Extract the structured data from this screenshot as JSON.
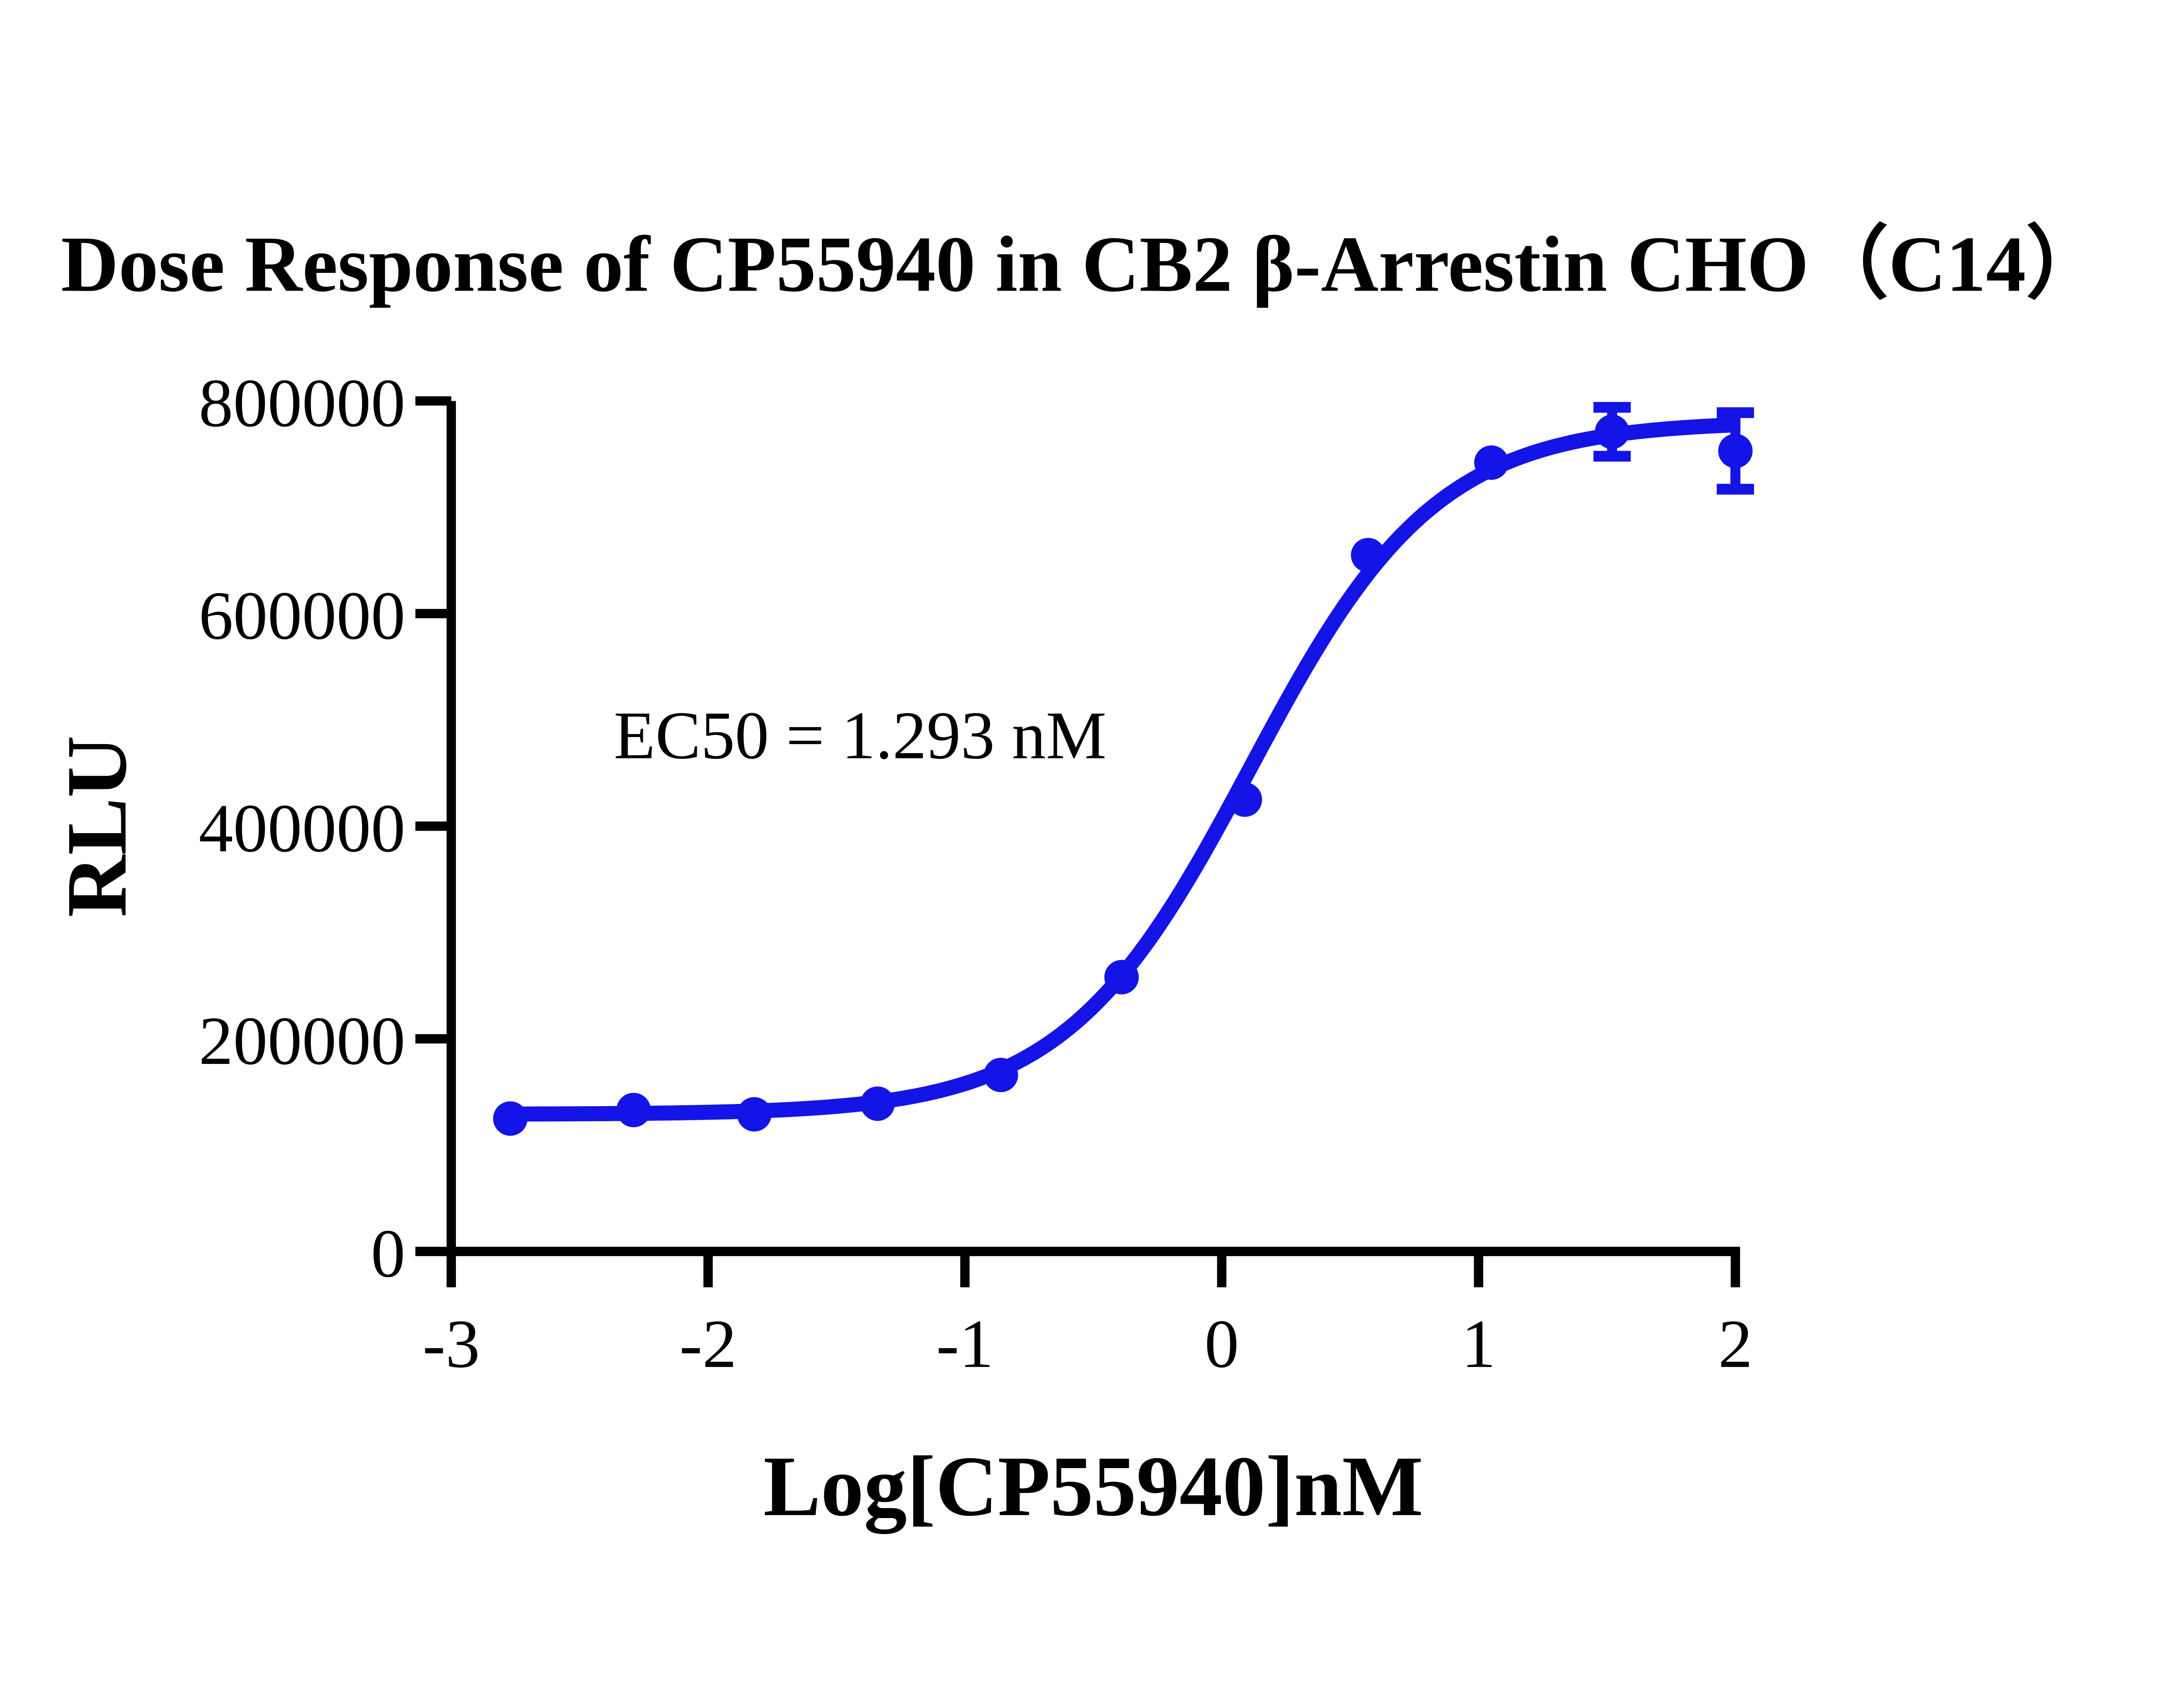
{
  "title": "Dose Response of CP55940 in CB2 β-Arrestin CHO（C14）",
  "annotation": {
    "text": "EC50 = 1.293 nM"
  },
  "colors": {
    "series": "#1414E6",
    "axis": "#000000",
    "background": "#ffffff"
  },
  "x_axis": {
    "title": "Log[CP55940]nM",
    "ticks": [
      "-3",
      "-2",
      "-1",
      "0",
      "1",
      "2"
    ],
    "tick_values": [
      -3,
      -2,
      -1,
      0,
      1,
      2
    ],
    "min": -3,
    "max": 2
  },
  "y_axis": {
    "title": "RLU",
    "ticks": [
      "0",
      "200000",
      "400000",
      "600000",
      "800000"
    ],
    "tick_values": [
      0,
      200000,
      400000,
      600000,
      800000
    ],
    "min": 0,
    "max": 800000
  },
  "chart_data": {
    "type": "scatter",
    "title": "Dose Response of CP55940 in CB2 β-Arrestin CHO（C14）",
    "xlabel": "Log[CP55940]nM",
    "ylabel": "RLU",
    "xlim": [
      -3,
      2
    ],
    "ylim": [
      0,
      800000
    ],
    "x_ticks": [
      -3,
      -2,
      -1,
      0,
      1,
      2
    ],
    "y_ticks": [
      0,
      200000,
      400000,
      600000,
      800000
    ],
    "grid": false,
    "legend": "none",
    "annotation": "EC50 = 1.293 nM",
    "ec50_nM": 1.293,
    "series": [
      {
        "name": "CP55940",
        "marker": "circle",
        "color": "#1414E6",
        "points": [
          {
            "x": -2.77,
            "y": 125000
          },
          {
            "x": -2.29,
            "y": 133000
          },
          {
            "x": -1.82,
            "y": 129000
          },
          {
            "x": -1.34,
            "y": 139000
          },
          {
            "x": -0.86,
            "y": 166000
          },
          {
            "x": -0.39,
            "y": 258000
          },
          {
            "x": 0.09,
            "y": 425000
          },
          {
            "x": 0.57,
            "y": 655000
          },
          {
            "x": 1.05,
            "y": 742000
          },
          {
            "x": 1.52,
            "y": 771000,
            "err": 23000
          },
          {
            "x": 2.0,
            "y": 753000,
            "err": 36000
          }
        ]
      }
    ],
    "fit": {
      "model": "4PL",
      "bottom": 129000,
      "top": 781000,
      "log_ec50": 0.1117,
      "hill": 1.2,
      "x_start": -2.77,
      "x_end": 2.0
    }
  },
  "layout_note": ""
}
